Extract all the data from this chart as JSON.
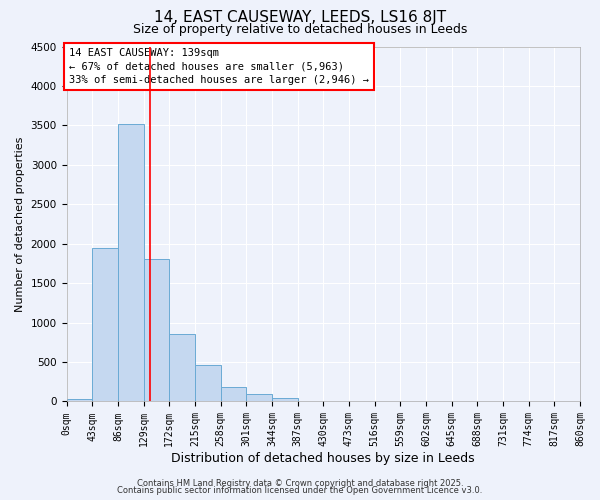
{
  "title": "14, EAST CAUSEWAY, LEEDS, LS16 8JT",
  "subtitle": "Size of property relative to detached houses in Leeds",
  "xlabel": "Distribution of detached houses by size in Leeds",
  "ylabel": "Number of detached properties",
  "bar_edges": [
    0,
    43,
    86,
    129,
    172,
    215,
    258,
    301,
    344,
    387,
    430,
    473,
    516,
    559,
    602,
    645,
    688,
    731,
    774,
    817,
    860
  ],
  "bar_heights": [
    30,
    1950,
    3520,
    1800,
    860,
    460,
    185,
    90,
    50,
    0,
    0,
    0,
    0,
    0,
    0,
    0,
    0,
    0,
    0,
    0
  ],
  "bar_color": "#c5d8f0",
  "bar_edgecolor": "#6aaad4",
  "vline_x": 139,
  "vline_color": "red",
  "vline_linewidth": 1.2,
  "ylim": [
    0,
    4500
  ],
  "annotation_line1": "14 EAST CAUSEWAY: 139sqm",
  "annotation_line2": "← 67% of detached houses are smaller (5,963)",
  "annotation_line3": "33% of semi-detached houses are larger (2,946) →",
  "tick_labels": [
    "0sqm",
    "43sqm",
    "86sqm",
    "129sqm",
    "172sqm",
    "215sqm",
    "258sqm",
    "301sqm",
    "344sqm",
    "387sqm",
    "430sqm",
    "473sqm",
    "516sqm",
    "559sqm",
    "602sqm",
    "645sqm",
    "688sqm",
    "731sqm",
    "774sqm",
    "817sqm",
    "860sqm"
  ],
  "background_color": "#eef2fb",
  "grid_color": "white",
  "footer_line1": "Contains HM Land Registry data © Crown copyright and database right 2025.",
  "footer_line2": "Contains public sector information licensed under the Open Government Licence v3.0.",
  "title_fontsize": 11,
  "subtitle_fontsize": 9,
  "xlabel_fontsize": 9,
  "ylabel_fontsize": 8,
  "tick_fontsize": 7,
  "annot_fontsize": 7.5,
  "footer_fontsize": 6
}
